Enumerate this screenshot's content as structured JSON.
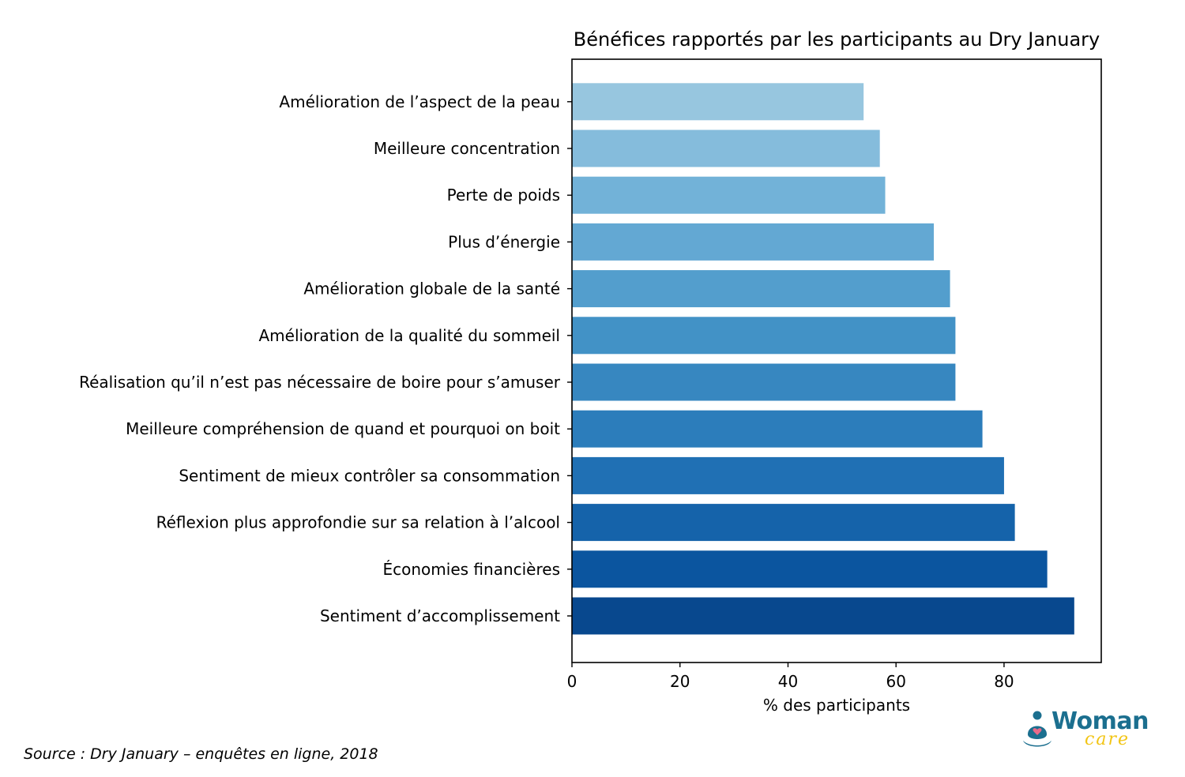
{
  "chart_data": {
    "type": "bar",
    "orientation": "horizontal",
    "title": "Bénéfices rapportés par les participants au Dry January",
    "xlabel": "% des participants",
    "ylabel": "",
    "xlim": [
      0,
      98
    ],
    "xticks": [
      0,
      20,
      40,
      60,
      80
    ],
    "grid": false,
    "categories": [
      "Sentiment d’accomplissement",
      "Économies financières",
      "Réflexion plus approfondie sur sa relation à l’alcool",
      "Sentiment de mieux contrôler sa consommation",
      "Meilleure compréhension de quand et pourquoi on boit",
      "Réalisation qu’il n’est pas nécessaire de boire pour s’amuser",
      "Amélioration de la qualité du sommeil",
      "Amélioration globale de la santé",
      "Plus d’énergie",
      "Perte de poids",
      "Meilleure concentration",
      "Amélioration de l’aspect de la peau"
    ],
    "values": [
      93,
      88,
      82,
      80,
      76,
      71,
      71,
      70,
      67,
      58,
      57,
      54
    ],
    "colors": [
      "#08488e",
      "#0b559f",
      "#1563aa",
      "#2070b4",
      "#2c7dbb",
      "#3787c0",
      "#4292c6",
      "#539ecd",
      "#63a8d3",
      "#72b2d8",
      "#85bcdc",
      "#97c6df"
    ]
  },
  "footer": {
    "source": "Source : Dry January – enquêtes en ligne, 2018"
  },
  "logo": {
    "word": "Woman",
    "sub": "care",
    "colors": {
      "primary": "#1b6f8f",
      "accent": "#f2c516",
      "heart": "#e86a8a"
    }
  }
}
